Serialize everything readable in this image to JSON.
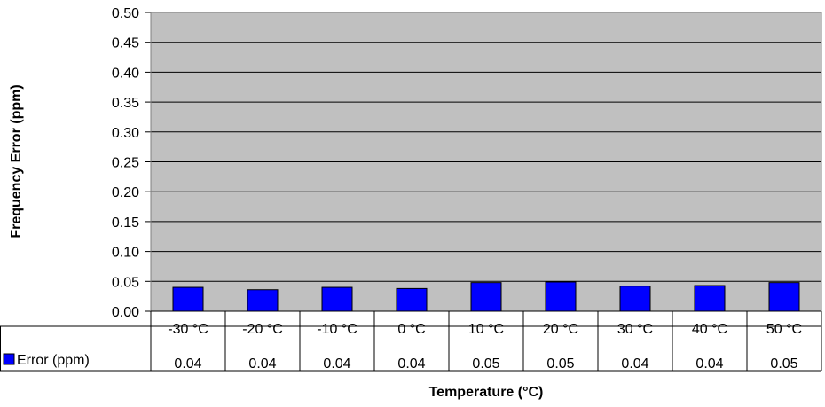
{
  "chart_data": {
    "type": "bar",
    "title": "",
    "xlabel": "Temperature (°C)",
    "ylabel": "Frequency Error (ppm)",
    "ylim": [
      0,
      0.5
    ],
    "yticks": [
      "0.00",
      "0.05",
      "0.10",
      "0.15",
      "0.20",
      "0.25",
      "0.30",
      "0.35",
      "0.40",
      "0.45",
      "0.50"
    ],
    "categories": [
      "-30 °C",
      "-20 °C",
      "-10 °C",
      "0 °C",
      "10 °C",
      "20 °C",
      "30 °C",
      "40 °C",
      "50 °C"
    ],
    "series": [
      {
        "name": "Error (ppm)",
        "color": "#0000ff",
        "values": [
          0.04,
          0.036,
          0.04,
          0.038,
          0.048,
          0.049,
          0.042,
          0.043,
          0.048
        ],
        "table_labels": [
          "0.04",
          "0.04",
          "0.04",
          "0.04",
          "0.05",
          "0.05",
          "0.04",
          "0.04",
          "0.05"
        ]
      }
    ],
    "grid": true,
    "plot_background": "#c0c0c0",
    "legend": "data-table"
  }
}
